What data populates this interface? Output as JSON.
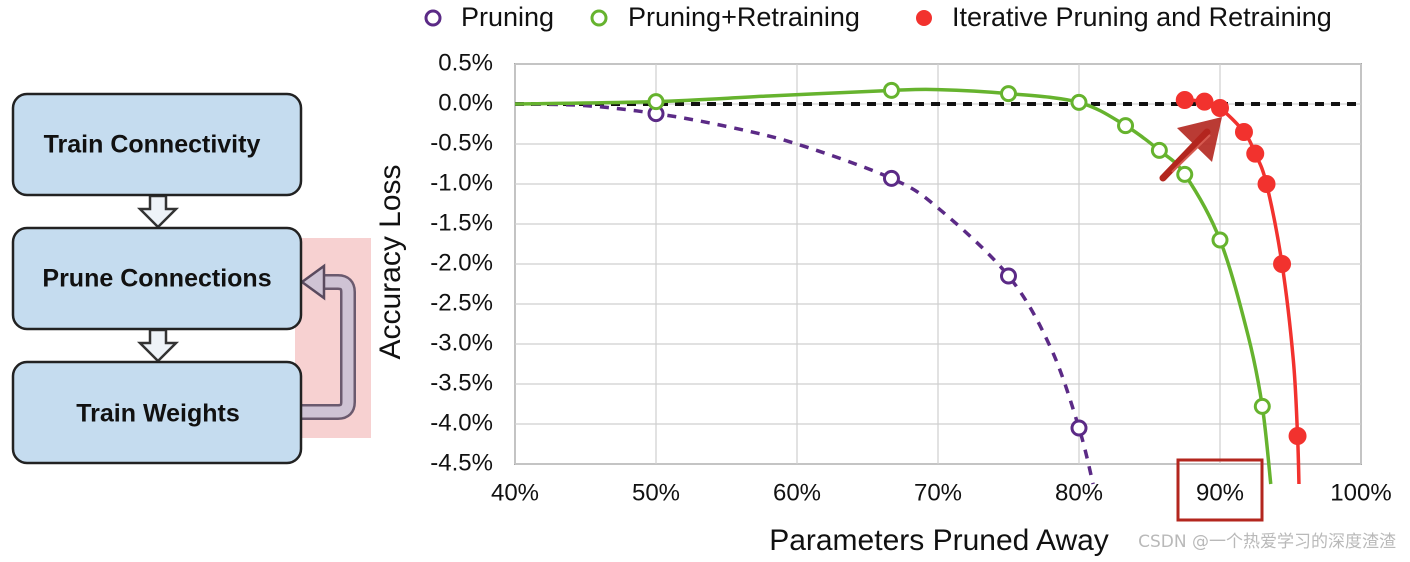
{
  "flow": {
    "steps": [
      "Train Connectivity",
      "Prune Connections",
      "Train Weights"
    ]
  },
  "legend": {
    "position": "top",
    "entries": [
      {
        "label": "Pruning",
        "color": "#5b2a86",
        "marker": "open-circle",
        "line": "dashed"
      },
      {
        "label": "Pruning+Retraining",
        "color": "#66b32e",
        "marker": "open-circle",
        "line": "solid"
      },
      {
        "label": "Iterative Pruning and Retraining",
        "color": "#f2322e",
        "marker": "filled-circle",
        "line": "solid"
      }
    ]
  },
  "chart_data": {
    "type": "line",
    "xlabel": "Parameters Pruned Away",
    "ylabel": "Accuracy Loss",
    "xlim": [
      40,
      100
    ],
    "ylim": [
      -4.5,
      0.5
    ],
    "xticks": [
      "40%",
      "50%",
      "60%",
      "70%",
      "80%",
      "90%",
      "100%"
    ],
    "yticks": [
      "0.5%",
      "0.0%",
      "-0.5%",
      "-1.0%",
      "-1.5%",
      "-2.0%",
      "-2.5%",
      "-3.0%",
      "-3.5%",
      "-4.0%",
      "-4.5%"
    ],
    "grid": true,
    "reference_line": {
      "y": 0,
      "style": "dashed",
      "color": "#000000"
    },
    "highlighted_tick": "90%",
    "series": [
      {
        "name": "Pruning",
        "color": "#5b2a86",
        "line": "dashed",
        "marker": "open-circle",
        "points": [
          [
            50,
            -0.12
          ],
          [
            66.7,
            -0.93
          ],
          [
            75,
            -2.15
          ],
          [
            80,
            -4.05
          ]
        ],
        "curve": [
          [
            40,
            0
          ],
          [
            45,
            -0.02
          ],
          [
            50,
            -0.12
          ],
          [
            55,
            -0.28
          ],
          [
            60,
            -0.5
          ],
          [
            66.7,
            -0.93
          ],
          [
            70,
            -1.3
          ],
          [
            75,
            -2.15
          ],
          [
            78,
            -3.05
          ],
          [
            80,
            -4.05
          ],
          [
            81,
            -4.75
          ]
        ]
      },
      {
        "name": "Pruning+Retraining",
        "color": "#66b32e",
        "line": "solid",
        "marker": "open-circle",
        "points": [
          [
            50,
            0.03
          ],
          [
            66.7,
            0.17
          ],
          [
            75,
            0.13
          ],
          [
            80,
            0.02
          ],
          [
            83.3,
            -0.27
          ],
          [
            85.7,
            -0.58
          ],
          [
            87.5,
            -0.88
          ],
          [
            90,
            -1.7
          ],
          [
            93,
            -3.78
          ]
        ],
        "curve": [
          [
            40,
            0
          ],
          [
            50,
            0.03
          ],
          [
            58,
            0.1
          ],
          [
            66.7,
            0.17
          ],
          [
            70,
            0.18
          ],
          [
            75,
            0.13
          ],
          [
            80,
            0.02
          ],
          [
            83.3,
            -0.27
          ],
          [
            85.7,
            -0.58
          ],
          [
            87.5,
            -0.88
          ],
          [
            90,
            -1.7
          ],
          [
            92,
            -2.9
          ],
          [
            93,
            -3.78
          ],
          [
            93.6,
            -4.75
          ]
        ]
      },
      {
        "name": "Iterative Pruning and Retraining",
        "color": "#f2322e",
        "line": "solid",
        "marker": "filled-circle",
        "points": [
          [
            87.5,
            0.05
          ],
          [
            88.9,
            0.03
          ],
          [
            90,
            -0.05
          ],
          [
            91.7,
            -0.35
          ],
          [
            92.5,
            -0.62
          ],
          [
            93.3,
            -1.0
          ],
          [
            94.4,
            -2.0
          ],
          [
            95.5,
            -4.15
          ]
        ],
        "curve": [
          [
            87.5,
            0.05
          ],
          [
            88.9,
            0.03
          ],
          [
            90,
            -0.05
          ],
          [
            91.7,
            -0.35
          ],
          [
            92.5,
            -0.62
          ],
          [
            93.3,
            -1.0
          ],
          [
            94.4,
            -2.0
          ],
          [
            95.2,
            -3.2
          ],
          [
            95.5,
            -4.15
          ],
          [
            95.6,
            -4.75
          ]
        ]
      }
    ]
  },
  "watermark": "CSDN @一个热爱学习的深度渣渣"
}
